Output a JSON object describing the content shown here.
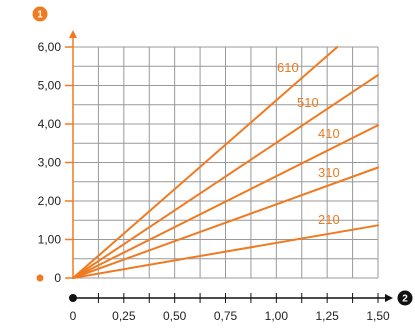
{
  "chart_data": {
    "type": "line",
    "title": "",
    "x_axis_marker": "2",
    "y_axis_marker": "1",
    "xlim": [
      0,
      1.5
    ],
    "ylim": [
      0,
      6
    ],
    "x_ticks": [
      {
        "value": 0,
        "label": "0"
      },
      {
        "value": 0.25,
        "label": "0,25"
      },
      {
        "value": 0.5,
        "label": "0,50"
      },
      {
        "value": 0.75,
        "label": "0,75"
      },
      {
        "value": 1.0,
        "label": "1,00"
      },
      {
        "value": 1.25,
        "label": "1,25"
      },
      {
        "value": 1.5,
        "label": "1,50"
      }
    ],
    "y_ticks": [
      {
        "value": 0,
        "label": "0"
      },
      {
        "value": 1,
        "label": "1,00"
      },
      {
        "value": 2,
        "label": "2,00"
      },
      {
        "value": 3,
        "label": "3,00"
      },
      {
        "value": 4,
        "label": "4,00"
      },
      {
        "value": 5,
        "label": "5,00"
      },
      {
        "value": 6,
        "label": "6,00"
      }
    ],
    "grid": true,
    "series": [
      {
        "name": "610",
        "x": [
          0,
          1.3
        ],
        "y": [
          0,
          6.0
        ]
      },
      {
        "name": "510",
        "x": [
          0,
          1.5
        ],
        "y": [
          0,
          5.27
        ]
      },
      {
        "name": "410",
        "x": [
          0,
          1.5
        ],
        "y": [
          0,
          3.97
        ]
      },
      {
        "name": "310",
        "x": [
          0,
          1.5
        ],
        "y": [
          0,
          2.87
        ]
      },
      {
        "name": "210",
        "x": [
          0,
          1.5
        ],
        "y": [
          0,
          1.37
        ]
      }
    ],
    "colors": {
      "line": "#f07a20",
      "label": "#f07a20",
      "axis": "#f07a20",
      "x_axis": "#111111",
      "grid": "#999999"
    }
  }
}
